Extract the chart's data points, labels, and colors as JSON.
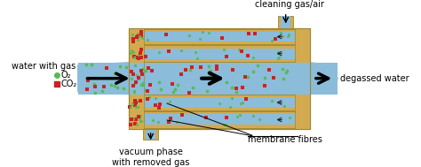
{
  "fig_width": 4.74,
  "fig_height": 1.89,
  "dpi": 100,
  "bg_color": "#ffffff",
  "gold_color": "#D4AA50",
  "blue_color": "#8BBCDA",
  "o2_color": "#55BB55",
  "co2_color": "#CC2222",
  "labels": {
    "water_with_gas": "water with gas",
    "o2": "O₂",
    "co2": "CO₂",
    "degassed": "degassed water",
    "vacuum": "vacuum phase\nwith removed gas",
    "membrane": "membrane fibres",
    "cleaning": "cleaning gas/air"
  }
}
